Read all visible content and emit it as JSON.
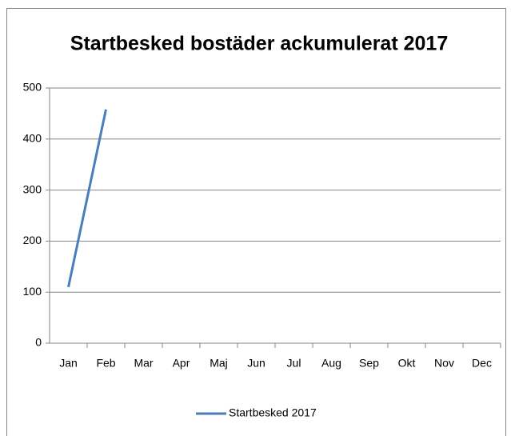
{
  "chart_data": {
    "type": "line",
    "title": "Startbesked bostäder ackumulerat 2017",
    "categories": [
      "Jan",
      "Feb",
      "Mar",
      "Apr",
      "Maj",
      "Jun",
      "Jul",
      "Aug",
      "Sep",
      "Okt",
      "Nov",
      "Dec"
    ],
    "series": [
      {
        "name": "Startbesked 2017",
        "color": "#4a7ebb",
        "values": [
          110,
          458,
          null,
          null,
          null,
          null,
          null,
          null,
          null,
          null,
          null,
          null
        ]
      }
    ],
    "ylim": [
      0,
      500
    ],
    "yticks": [
      0,
      100,
      200,
      300,
      400,
      500
    ],
    "grid": true,
    "legend": "bottom"
  }
}
